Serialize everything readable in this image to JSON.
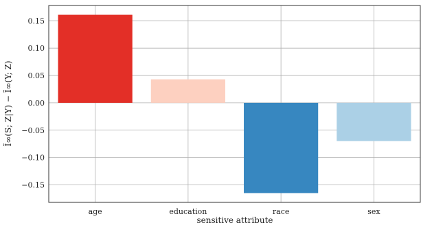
{
  "chart_data": {
    "type": "bar",
    "categories": [
      "age",
      "education",
      "race",
      "sex"
    ],
    "values": [
      0.161,
      0.043,
      -0.165,
      -0.07
    ],
    "colors": [
      "#e32f27",
      "#fdd0c0",
      "#3787c0",
      "#abd0e6"
    ],
    "xlabel": "sensitive attribute",
    "ylabel": "Ĩ∞(S; Z|Y) − Ĩ∞(Y; Z)",
    "ylim": [
      -0.182,
      0.178
    ],
    "yticks": [
      0.15,
      0.1,
      0.05,
      0.0,
      -0.05,
      -0.1,
      -0.15
    ],
    "ytick_labels": [
      "0.15",
      "0.10",
      "0.05",
      "0.00",
      "−0.05",
      "−0.10",
      "−0.15"
    ],
    "grid": true
  }
}
